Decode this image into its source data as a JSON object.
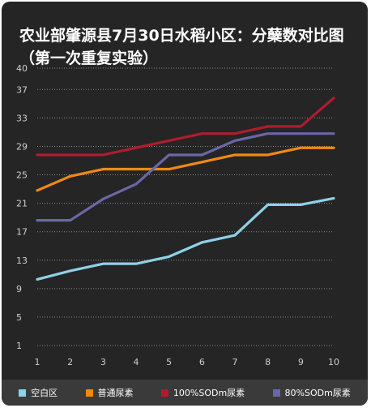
{
  "chart_data": {
    "type": "line",
    "title": "农业部肇源县7月30日水稻小区：分蘖数对比图（第一次重复实验）",
    "xlabel": "",
    "ylabel": "",
    "x": [
      1,
      2,
      3,
      4,
      5,
      6,
      7,
      8,
      9,
      10
    ],
    "y_ticks": [
      1,
      5,
      9,
      13,
      17,
      21,
      25,
      29,
      33,
      37,
      40
    ],
    "ylim": [
      1,
      40
    ],
    "grid": true,
    "legend_position": "bottom",
    "series": [
      {
        "name": "空白区",
        "color": "#8ed1e8",
        "values": [
          10.3,
          11.5,
          12.5,
          12.5,
          13.5,
          15.5,
          16.5,
          20.8,
          20.8,
          21.7
        ]
      },
      {
        "name": "普通尿素",
        "color": "#f08a12",
        "values": [
          22.8,
          24.8,
          25.8,
          25.8,
          25.8,
          26.8,
          27.8,
          27.8,
          28.8,
          28.8
        ]
      },
      {
        "name": "100%SODm尿素",
        "color": "#b01c2e",
        "values": [
          27.8,
          27.8,
          27.8,
          28.8,
          29.8,
          30.8,
          30.8,
          31.8,
          31.8,
          35.8
        ]
      },
      {
        "name": "80%SODm尿素",
        "color": "#6a67a8",
        "values": [
          18.6,
          18.6,
          21.6,
          23.7,
          27.8,
          27.8,
          29.8,
          30.8,
          30.8,
          30.8
        ]
      }
    ]
  }
}
